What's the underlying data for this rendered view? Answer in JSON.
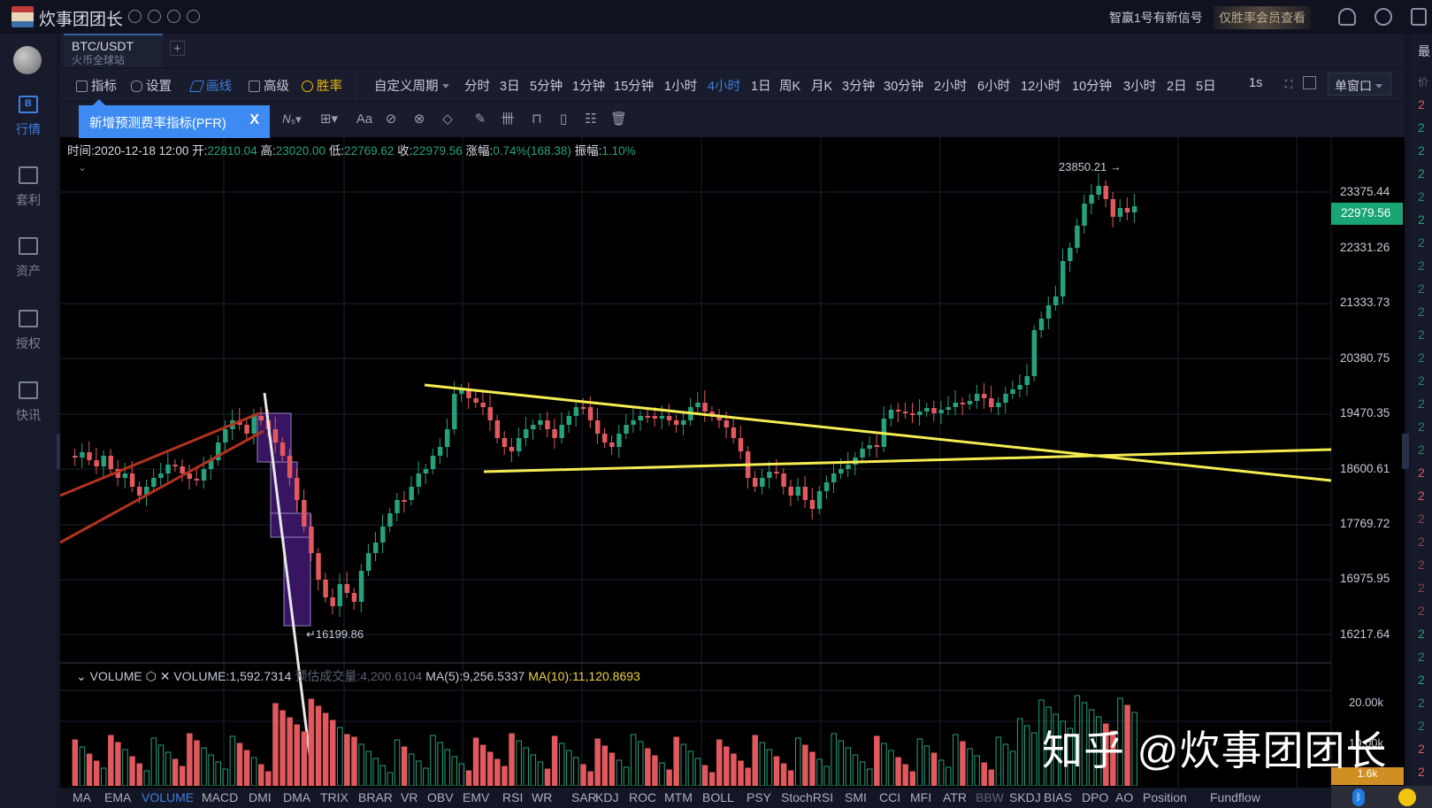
{
  "topbar": {
    "app_title": "炊事团团长",
    "status_icons": [
      "badge-icon",
      "shield-percent-icon",
      "gauge-icon",
      "phone-icon"
    ],
    "signal_text": "智赢1号有新信号",
    "vip_link": "仅胜率会员查看",
    "icons": [
      "bell-icon",
      "search-icon",
      "shirt-icon"
    ]
  },
  "sidebar": {
    "items": [
      {
        "label": "行情",
        "icon": "market-icon",
        "active": true
      },
      {
        "label": "套利",
        "icon": "arbitrage-icon"
      },
      {
        "label": "资产",
        "icon": "wallet-icon"
      },
      {
        "label": "授权",
        "icon": "key-icon"
      },
      {
        "label": "快讯",
        "icon": "news-icon"
      }
    ]
  },
  "symbol_tab": {
    "pair": "BTC/USDT",
    "exchange": "火币全球站",
    "add_label": "+"
  },
  "toolbar": {
    "indicators": "指标",
    "settings": "设置",
    "draw": "画线",
    "advanced": "高级",
    "winrate": "胜率",
    "custom_period": "自定义周期",
    "periods": [
      "分时",
      "3日",
      "5分钟",
      "1分钟",
      "15分钟",
      "1小时",
      "4小时",
      "1日",
      "周K",
      "月K",
      "3分钟",
      "30分钟",
      "2小时",
      "6小时",
      "12小时",
      "10分钟",
      "3小时",
      "2日",
      "5日"
    ],
    "active_period": "4小时",
    "interval": "1s",
    "window_mode": "单窗口"
  },
  "drawing_tools": [
    "fib-wave-icon",
    "measure-box-icon",
    "text-icon",
    "ruler-pattern-icon",
    "eraser-icon",
    "ruler-icon",
    "pen-icon",
    "candle-pattern-icon",
    "lock-icon",
    "bookmark-icon",
    "template-icon",
    "trash-icon"
  ],
  "drawing_tools_text": {
    "wave": "⁄\\/5",
    "text": "Aa"
  },
  "tooltip": {
    "text": "新增预测费率指标(PFR)",
    "close": "X"
  },
  "ohlc": {
    "time_label": "时间:",
    "time": "2020-12-18 12:00",
    "open_label": "开:",
    "open": "22810.04",
    "high_label": "高:",
    "high": "23020.00",
    "low_label": "低:",
    "low": "22769.62",
    "close_label": "收:",
    "close": "22979.56",
    "change_label": "涨幅:",
    "change": "0.74%(168.38)",
    "amp_label": "振幅:",
    "amp": "1.10%"
  },
  "price_axis": {
    "labels": [
      "23375.44",
      "22331.26",
      "21333.73",
      "20380.75",
      "19470.35",
      "18600.61",
      "17769.72",
      "16975.95",
      "16217.64"
    ],
    "last_price": "22979.56",
    "high_marker": "23850.21 →",
    "low_marker": "↵16199.86"
  },
  "volume": {
    "title": "VOLUME",
    "value": "VOLUME:1,592.7314",
    "estimate": "预估成交量:4,200.6104",
    "ma5": "MA(5):9,256.5337",
    "ma10": "MA(10):11,120.8693",
    "axis": [
      "20.00k",
      "10.00k"
    ],
    "badge": "1.6k"
  },
  "indicator_tabs": [
    "MA",
    "EMA",
    "VOLUME",
    "MACD",
    "DMI",
    "DMA",
    "TRIX",
    "BRAR",
    "VR",
    "OBV",
    "EMV",
    "RSI",
    "WR",
    "SAR",
    "KDJ",
    "ROC",
    "MTM",
    "BOLL",
    "PSY",
    "StochRSI",
    "SMI",
    "CCI",
    "MFI",
    "ATR",
    "BBW",
    "SKDJ",
    "BIAS",
    "DPO",
    "AO",
    "Position",
    "Fundflow"
  ],
  "active_indicator": "VOLUME",
  "watermark": "知乎 @炊事团团长",
  "orderbook": {
    "header": "最",
    "sub": "价"
  },
  "colors": {
    "up": "#26a17b",
    "down": "#e0595f",
    "accent": "#3f7fe0",
    "trendline": "#f5ec52",
    "wedge": "#b3321e",
    "box": "#3a1766"
  },
  "chart_data": {
    "type": "candlestick",
    "symbol": "BTC/USDT",
    "interval": "4h",
    "ylim": [
      16000,
      24100
    ],
    "y_ticks": [
      23375.44,
      22331.26,
      21333.73,
      20380.75,
      19470.35,
      18600.61,
      17769.72,
      16975.95,
      16217.64
    ],
    "last": {
      "time": "2020-12-18 12:00",
      "open": 22810.04,
      "high": 23020.0,
      "low": 22769.62,
      "close": 22979.56
    },
    "annotations": [
      {
        "label": "23850.21",
        "type": "high"
      },
      {
        "label": "16199.86",
        "type": "low"
      }
    ],
    "drawings": [
      "rising wedge (red)",
      "descending triangle top (yellow)",
      "triangle support (yellow)",
      "drop boxes (purple)"
    ]
  }
}
